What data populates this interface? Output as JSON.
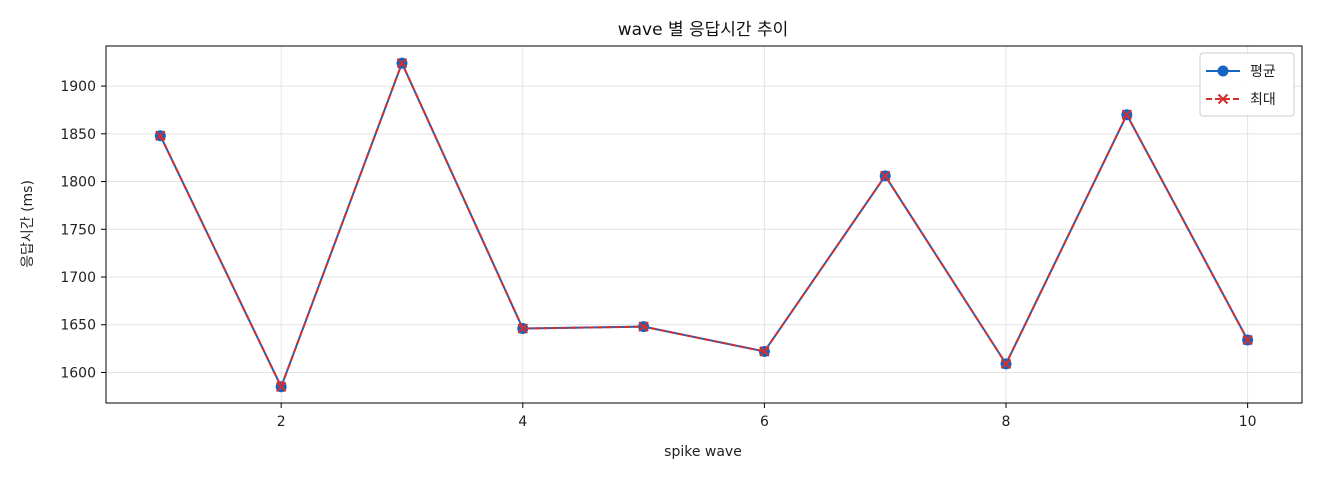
{
  "chart_data": {
    "type": "line",
    "title": "wave 별 응답시간 추이",
    "xlabel": "spike wave",
    "ylabel": "응답시간 (ms)",
    "x": [
      1,
      2,
      3,
      4,
      5,
      6,
      7,
      8,
      9,
      10
    ],
    "xlim": [
      0.55,
      10.45
    ],
    "ylim": [
      1568,
      1942
    ],
    "xticks": [
      2,
      4,
      6,
      8,
      10
    ],
    "yticks": [
      1600,
      1650,
      1700,
      1750,
      1800,
      1850,
      1900
    ],
    "grid": true,
    "legend_position": "top-right",
    "series": [
      {
        "name": "평균",
        "color": "#1565c0",
        "marker": "circle",
        "line_style": "solid",
        "values": [
          1848,
          1585,
          1924,
          1646,
          1648,
          1622,
          1806,
          1609,
          1870,
          1634
        ]
      },
      {
        "name": "최대",
        "color": "#d32f2f",
        "marker": "x",
        "line_style": "dashed",
        "values": [
          1848,
          1585,
          1924,
          1646,
          1648,
          1622,
          1806,
          1609,
          1870,
          1634
        ]
      }
    ]
  }
}
